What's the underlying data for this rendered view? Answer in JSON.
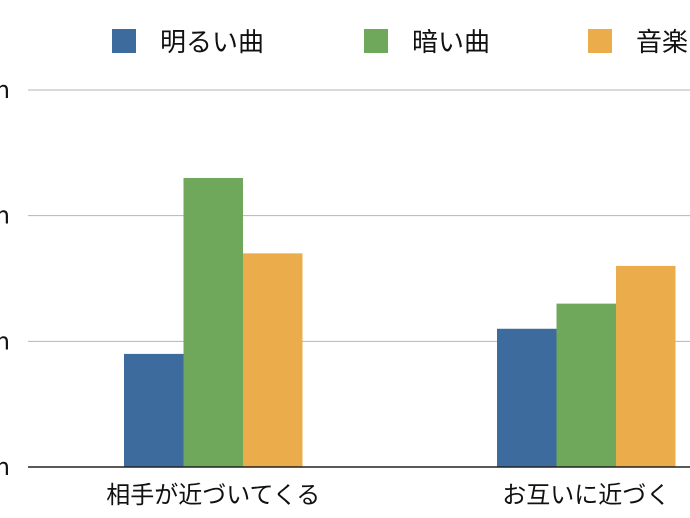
{
  "chart_data": {
    "type": "bar",
    "categories": [
      "相手が近づいてくる",
      "お互いに近づく"
    ],
    "series": [
      {
        "name": "明るい曲",
        "color": "#3d6b9e",
        "values": [
          0.9,
          1.1
        ]
      },
      {
        "name": "暗い曲",
        "color": "#6fa85a",
        "values": [
          2.3,
          1.3
        ]
      },
      {
        "name": "音楽",
        "color": "#ebac4b",
        "values": [
          1.7,
          1.6
        ]
      }
    ],
    "y_ticks": [
      {
        "value": 0,
        "label": "m"
      },
      {
        "value": 1,
        "label": "m"
      },
      {
        "value": 2,
        "label": "m"
      },
      {
        "value": 3,
        "label": "m"
      }
    ],
    "ylim": [
      0,
      3
    ],
    "grid": true,
    "legend": "top"
  }
}
